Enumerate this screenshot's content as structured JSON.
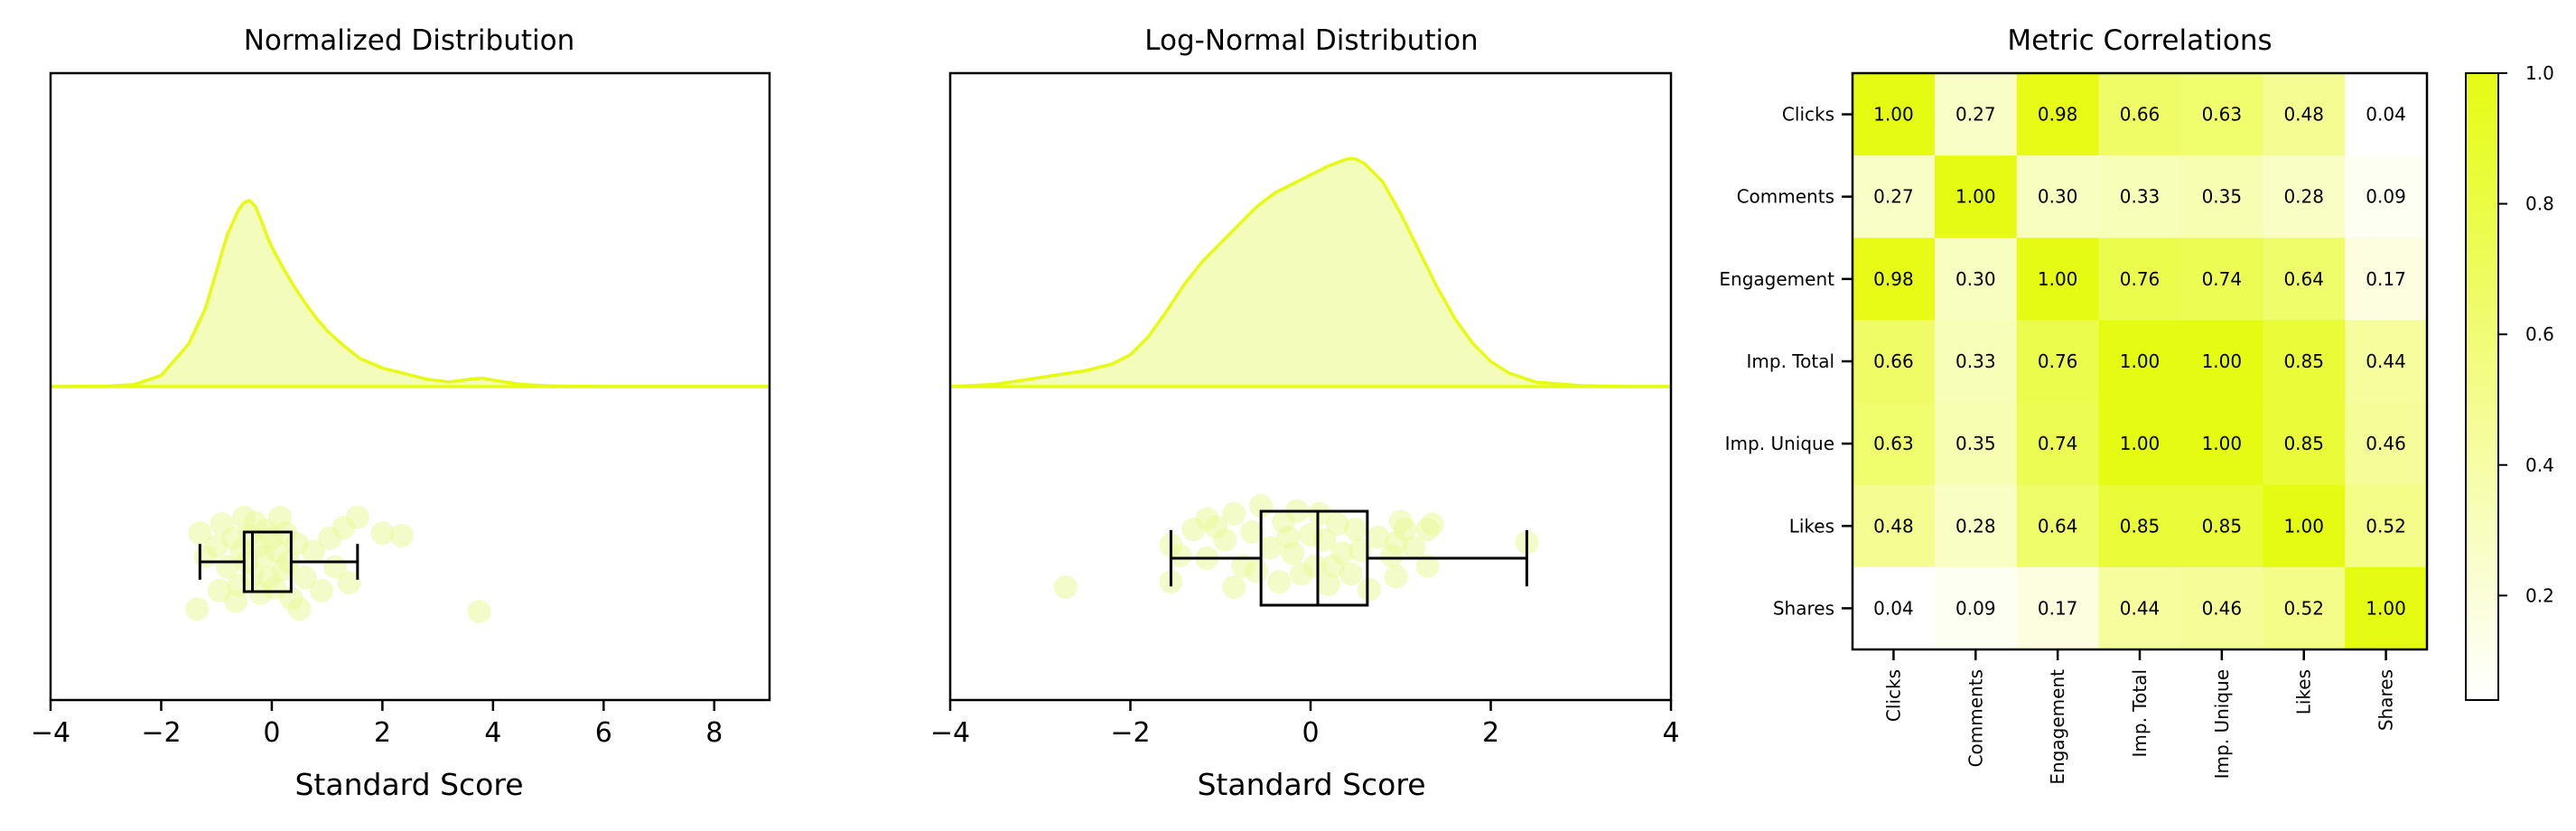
{
  "colors": {
    "accent": "#e6fb12",
    "fill": "#f2fcb0",
    "point": "#eaf99a",
    "box": "#000000",
    "axis": "#000000"
  },
  "chart_data": [
    {
      "type": "density+box+strip",
      "title": "Normalized Distribution",
      "xlabel": "Standard Score",
      "xlim": [
        -4,
        9
      ],
      "xticks": [
        -4,
        -2,
        0,
        2,
        4,
        6,
        8
      ],
      "density": {
        "x": [
          -4,
          -3,
          -2.5,
          -2,
          -1.5,
          -1.2,
          -1,
          -0.8,
          -0.6,
          -0.5,
          -0.4,
          -0.3,
          -0.2,
          -0.1,
          0,
          0.2,
          0.4,
          0.6,
          0.8,
          1,
          1.3,
          1.6,
          2,
          2.4,
          2.8,
          3.2,
          3.6,
          3.8,
          4.1,
          4.5,
          5,
          6,
          7,
          9
        ],
        "y": [
          0,
          0.002,
          0.01,
          0.06,
          0.23,
          0.42,
          0.62,
          0.82,
          0.95,
          0.99,
          1.0,
          0.97,
          0.9,
          0.82,
          0.75,
          0.64,
          0.54,
          0.45,
          0.37,
          0.3,
          0.22,
          0.15,
          0.1,
          0.07,
          0.04,
          0.025,
          0.04,
          0.045,
          0.03,
          0.012,
          0.004,
          0,
          0,
          0
        ]
      },
      "box": {
        "whisker_low": -1.3,
        "q1": -0.5,
        "median": -0.35,
        "q3": 0.35,
        "whisker_high": 1.55
      },
      "points": [
        [
          -1.2,
          0.1
        ],
        [
          -1.3,
          0.55
        ],
        [
          -1.0,
          0.3
        ],
        [
          -0.9,
          0.72
        ],
        [
          -0.8,
          -0.1
        ],
        [
          -0.7,
          0.45
        ],
        [
          -0.6,
          -0.45
        ],
        [
          -0.55,
          0.2
        ],
        [
          -0.5,
          0.85
        ],
        [
          -0.45,
          0.0
        ],
        [
          -0.4,
          0.5
        ],
        [
          -0.35,
          -0.25
        ],
        [
          -0.3,
          0.75
        ],
        [
          -0.25,
          0.3
        ],
        [
          -0.2,
          -0.6
        ],
        [
          -0.15,
          0.1
        ],
        [
          -0.1,
          0.6
        ],
        [
          -0.05,
          -0.3
        ],
        [
          0.0,
          0.45
        ],
        [
          0.05,
          -0.5
        ],
        [
          0.1,
          0.2
        ],
        [
          0.15,
          0.85
        ],
        [
          0.2,
          -0.15
        ],
        [
          0.25,
          0.55
        ],
        [
          0.3,
          0.0
        ],
        [
          0.35,
          -0.7
        ],
        [
          0.45,
          0.35
        ],
        [
          0.6,
          -0.3
        ],
        [
          0.75,
          0.2
        ],
        [
          0.9,
          -0.55
        ],
        [
          1.05,
          0.45
        ],
        [
          1.15,
          -0.1
        ],
        [
          1.3,
          0.65
        ],
        [
          1.55,
          0.85
        ],
        [
          1.4,
          -0.4
        ],
        [
          2.0,
          0.55
        ],
        [
          2.35,
          0.5
        ],
        [
          3.75,
          -0.95
        ],
        [
          -1.35,
          -0.9
        ],
        [
          -0.65,
          -0.75
        ],
        [
          0.5,
          -0.9
        ],
        [
          -0.95,
          -0.55
        ]
      ]
    },
    {
      "type": "density+box+strip",
      "title": "Log-Normal Distribution",
      "xlabel": "Standard Score",
      "xlim": [
        -4,
        4
      ],
      "xticks": [
        -4,
        -2,
        0,
        2,
        4
      ],
      "density": {
        "x": [
          -4,
          -3.5,
          -3,
          -2.5,
          -2.2,
          -2,
          -1.8,
          -1.6,
          -1.4,
          -1.2,
          -1,
          -0.8,
          -0.6,
          -0.4,
          -0.2,
          0,
          0.2,
          0.4,
          0.5,
          0.6,
          0.8,
          1,
          1.2,
          1.4,
          1.6,
          1.8,
          2,
          2.2,
          2.5,
          3,
          3.5,
          4
        ],
        "y": [
          0,
          0.01,
          0.04,
          0.07,
          0.1,
          0.14,
          0.22,
          0.33,
          0.45,
          0.55,
          0.63,
          0.71,
          0.79,
          0.85,
          0.89,
          0.93,
          0.97,
          1.0,
          1.0,
          0.98,
          0.9,
          0.76,
          0.6,
          0.44,
          0.3,
          0.19,
          0.11,
          0.06,
          0.02,
          0.004,
          0,
          0
        ]
      },
      "box": {
        "whisker_low": -1.55,
        "q1": -0.55,
        "median": 0.08,
        "q3": 0.63,
        "whisker_high": 2.4
      },
      "points": [
        [
          -2.72,
          -0.55
        ],
        [
          -1.55,
          0.25
        ],
        [
          -1.55,
          -0.45
        ],
        [
          -1.45,
          0.05
        ],
        [
          -1.3,
          0.55
        ],
        [
          -1.15,
          0.75
        ],
        [
          -1.05,
          0.6
        ],
        [
          -1.15,
          0.0
        ],
        [
          -0.95,
          0.35
        ],
        [
          -0.85,
          0.85
        ],
        [
          -0.75,
          -0.15
        ],
        [
          -0.65,
          0.5
        ],
        [
          -0.55,
          1.0
        ],
        [
          -0.45,
          0.2
        ],
        [
          -0.35,
          -0.45
        ],
        [
          -0.3,
          0.7
        ],
        [
          -0.2,
          0.1
        ],
        [
          -0.15,
          0.9
        ],
        [
          -0.1,
          -0.3
        ],
        [
          0.0,
          0.45
        ],
        [
          0.05,
          -0.15
        ],
        [
          0.15,
          0.35
        ],
        [
          0.2,
          -0.5
        ],
        [
          0.3,
          0.65
        ],
        [
          0.35,
          0.1
        ],
        [
          0.45,
          -0.3
        ],
        [
          0.5,
          0.55
        ],
        [
          0.55,
          0.15
        ],
        [
          0.65,
          -0.6
        ],
        [
          0.75,
          0.4
        ],
        [
          0.9,
          0.05
        ],
        [
          0.95,
          0.3
        ],
        [
          0.95,
          -0.35
        ],
        [
          1.05,
          0.55
        ],
        [
          1.15,
          0.2
        ],
        [
          1.3,
          0.55
        ],
        [
          1.35,
          0.65
        ],
        [
          1.3,
          -0.15
        ],
        [
          1.0,
          0.7
        ],
        [
          -0.6,
          -0.25
        ],
        [
          -0.85,
          -0.55
        ],
        [
          2.4,
          0.3
        ],
        [
          0.1,
          0.85
        ],
        [
          -0.25,
          0.4
        ],
        [
          0.25,
          -0.15
        ]
      ]
    },
    {
      "type": "heatmap",
      "title": "Metric Correlations",
      "labels": [
        "Clicks",
        "Comments",
        "Engagement",
        "Imp. Total",
        "Imp. Unique",
        "Likes",
        "Shares"
      ],
      "matrix": [
        [
          1.0,
          0.27,
          0.98,
          0.66,
          0.63,
          0.48,
          0.04
        ],
        [
          0.27,
          1.0,
          0.3,
          0.33,
          0.35,
          0.28,
          0.09
        ],
        [
          0.98,
          0.3,
          1.0,
          0.76,
          0.74,
          0.64,
          0.17
        ],
        [
          0.66,
          0.33,
          0.76,
          1.0,
          1.0,
          0.85,
          0.44
        ],
        [
          0.63,
          0.35,
          0.74,
          1.0,
          1.0,
          0.85,
          0.46
        ],
        [
          0.48,
          0.28,
          0.64,
          0.85,
          0.85,
          1.0,
          0.52
        ],
        [
          0.04,
          0.09,
          0.17,
          0.44,
          0.46,
          0.52,
          1.0
        ]
      ],
      "colorbar": {
        "min": 0.04,
        "max": 1.0,
        "ticks": [
          "0.2",
          "0.4",
          "0.6",
          "0.8",
          "1.0"
        ],
        "low_color": "#ffffff",
        "high_color": "#e6fb12"
      }
    }
  ]
}
